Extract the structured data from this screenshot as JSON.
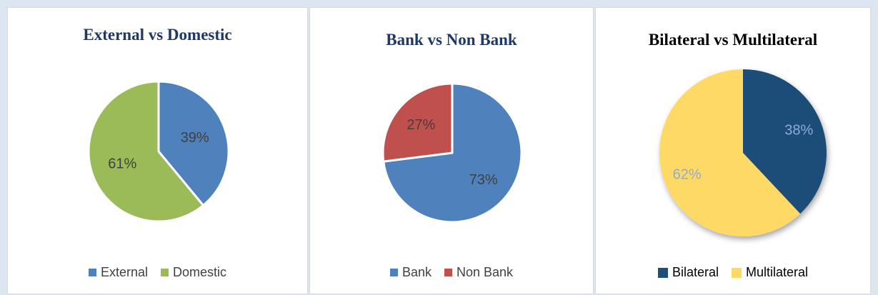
{
  "chart_data": [
    {
      "type": "pie",
      "title": "External vs Domestic",
      "categories": [
        "External",
        "Domestic"
      ],
      "values": [
        39,
        61
      ],
      "labels": [
        "39%",
        "61%"
      ],
      "colors": [
        "#4f81bd",
        "#9bbb59"
      ],
      "label_colors": [
        "#404040",
        "#404040"
      ],
      "legend": "bottom"
    },
    {
      "type": "pie",
      "title": "Bank vs Non Bank",
      "categories": [
        "Bank",
        "Non Bank"
      ],
      "values": [
        73,
        27
      ],
      "labels": [
        "73%",
        "27%"
      ],
      "colors": [
        "#4f81bd",
        "#c0504d"
      ],
      "label_colors": [
        "#404040",
        "#404040"
      ],
      "legend": "bottom"
    },
    {
      "type": "pie",
      "title": "Bilateral vs Multilateral",
      "categories": [
        "Bilateral",
        "Multilateral"
      ],
      "values": [
        38,
        62
      ],
      "labels": [
        "38%",
        "62%"
      ],
      "colors": [
        "#1f4e79",
        "#ffd966"
      ],
      "label_colors": [
        "#8eaadb",
        "#8eaadb"
      ],
      "legend": "bottom"
    }
  ]
}
